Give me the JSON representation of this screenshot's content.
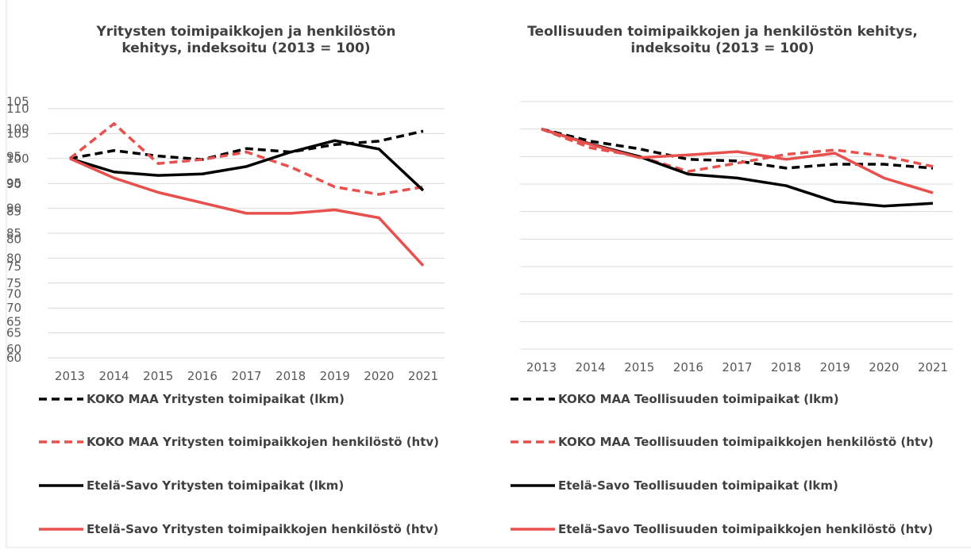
{
  "chart_data": [
    {
      "type": "line",
      "title": "Yritysten toimipaikkojen ja henkilöstön kehitys, indeksoitu (2013 = 100)",
      "categories": [
        "2013",
        "2014",
        "2015",
        "2016",
        "2017",
        "2018",
        "2019",
        "2020",
        "2021"
      ],
      "ylim": [
        60,
        110
      ],
      "yticks": [
        60,
        65,
        70,
        75,
        80,
        85,
        90,
        95,
        100,
        105,
        110
      ],
      "series": [
        {
          "name": "KOKO MAA Yritysten toimipaikat (lkm)",
          "color": "#000000",
          "dashed": true,
          "values": [
            100,
            101.6,
            100.5,
            99.8,
            102,
            101.3,
            102.8,
            103.5,
            105.5
          ]
        },
        {
          "name": "KOKO MAA Yritysten toimipaikkojen henkilöstö (htv)",
          "color": "#e8504d",
          "dashed": true,
          "values": [
            100,
            107,
            99,
            99.8,
            101.3,
            98.3,
            94.3,
            92.8,
            94.3
          ]
        },
        {
          "name": "Etelä-Savo Yritysten toimipaikat (lkm)",
          "color": "#000000",
          "dashed": false,
          "values": [
            100,
            97.3,
            96.6,
            96.9,
            98.4,
            101.3,
            103.6,
            101.9,
            93.6
          ]
        },
        {
          "name": "Etelä-Savo Yritysten toimipaikkojen henkilöstö (htv)",
          "color": "#e8504d",
          "dashed": false,
          "values": [
            100,
            96.1,
            93.2,
            91.1,
            89,
            89,
            89.7,
            88.1,
            78.5
          ]
        }
      ]
    },
    {
      "type": "line",
      "title": "Teollisuuden toimipaikkojen ja henkilöstön kehitys, indeksoitu (2013 = 100)",
      "categories": [
        "2013",
        "2014",
        "2015",
        "2016",
        "2017",
        "2018",
        "2019",
        "2020",
        "2021"
      ],
      "ylim": [
        60,
        105
      ],
      "yticks": [
        60,
        65,
        70,
        75,
        80,
        85,
        90,
        95,
        100,
        105
      ],
      "series": [
        {
          "name": "KOKO MAA Teollisuuden toimipaikat (lkm)",
          "color": "#000000",
          "dashed": true,
          "values": [
            100,
            97.8,
            96.4,
            94.5,
            94.2,
            92.9,
            93.6,
            93.6,
            92.9
          ]
        },
        {
          "name": "KOKO MAA Teollisuuden toimipaikkojen henkilöstö (htv)",
          "color": "#e8504d",
          "dashed": true,
          "values": [
            100,
            96.6,
            95,
            92.3,
            93.8,
            95.4,
            96.2,
            95.1,
            93.2
          ]
        },
        {
          "name": "Etelä-Savo Teollisuuden toimipaikat (lkm)",
          "color": "#000000",
          "dashed": false,
          "values": [
            100,
            97.3,
            95,
            91.8,
            91.1,
            89.7,
            86.8,
            86,
            86.5
          ]
        },
        {
          "name": "Etelä-Savo Teollisuuden toimipaikkojen henkilöstö (htv)",
          "color": "#e8504d",
          "dashed": false,
          "values": [
            100,
            97.2,
            94.8,
            95.3,
            95.9,
            94.5,
            95.6,
            91.1,
            88.4
          ]
        }
      ]
    }
  ]
}
